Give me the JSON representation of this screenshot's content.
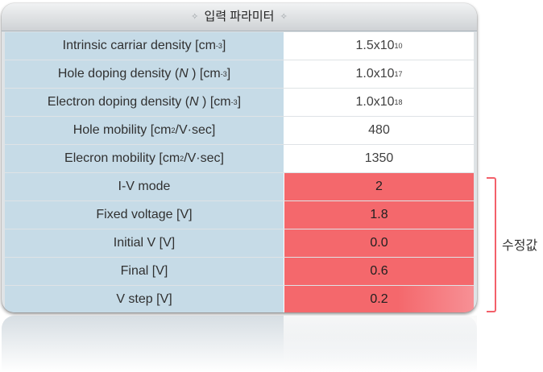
{
  "title": "입력 파라미터",
  "rows": [
    {
      "label_main": "Intrinsic carriar density [cm",
      "label_sup": "-3",
      "label_tail": "]",
      "value_main": "1.5x10",
      "value_sup": "10",
      "modified": false
    },
    {
      "label_main": "Hole doping density (N ) [cm",
      "label_sup": "-3",
      "label_tail": "]",
      "value_main": "1.0x10",
      "value_sup": "17",
      "modified": false
    },
    {
      "label_main": "Electron doping density (N ) [cm",
      "label_sup": "-3",
      "label_tail": "]",
      "value_main": "1.0x10",
      "value_sup": "18",
      "modified": false
    },
    {
      "label_main": "Hole mobility [cm",
      "label_sup": "2",
      "label_tail": "/V·sec]",
      "value_main": "480",
      "value_sup": "",
      "modified": false
    },
    {
      "label_main": "Elecron mobility [cm",
      "label_sup": "2",
      "label_tail": "/V·sec]",
      "value_main": "1350",
      "value_sup": "",
      "modified": false
    },
    {
      "label_main": "I-V mode",
      "label_sup": "",
      "label_tail": "",
      "value_main": "2",
      "value_sup": "",
      "modified": true
    },
    {
      "label_main": "Fixed voltage [V]",
      "label_sup": "",
      "label_tail": "",
      "value_main": "1.8",
      "value_sup": "",
      "modified": true
    },
    {
      "label_main": "Initial V [V]",
      "label_sup": "",
      "label_tail": "",
      "value_main": "0.0",
      "value_sup": "",
      "modified": true
    },
    {
      "label_main": "Final [V]",
      "label_sup": "",
      "label_tail": "",
      "value_main": "0.6",
      "value_sup": "",
      "modified": true
    },
    {
      "label_main": "V step [V]",
      "label_sup": "",
      "label_tail": "",
      "value_main": "0.2",
      "value_sup": "",
      "modified": true
    }
  ],
  "modified_label": "수정값",
  "colors": {
    "label_bg": "#c6dbe7",
    "modified_bg": "#f4686c",
    "bracket": "#f3606a"
  }
}
